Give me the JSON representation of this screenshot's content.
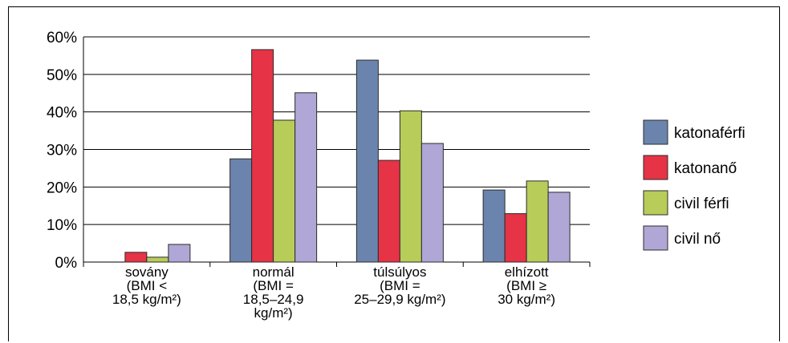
{
  "chart_data": {
    "type": "bar",
    "categories": [
      {
        "lines": [
          "sovány",
          "(BMI <",
          "18,5 kg/m²)"
        ]
      },
      {
        "lines": [
          "normál",
          "(BMI =",
          "18,5–24,9",
          "kg/m²)"
        ]
      },
      {
        "lines": [
          "túlsúlyos",
          "(BMI =",
          "25–29,9 kg/m²)"
        ]
      },
      {
        "lines": [
          "elhízott",
          "(BMI ≥",
          "30 kg/m²)"
        ]
      }
    ],
    "series": [
      {
        "name": "katonaférfi",
        "color": "#6b84ad",
        "values": [
          0,
          27.5,
          53.8,
          19.2
        ]
      },
      {
        "name": "katonanő",
        "color": "#e63346",
        "values": [
          2.6,
          56.6,
          27.1,
          12.9
        ]
      },
      {
        "name": "civil férfi",
        "color": "#b8cc59",
        "values": [
          1.3,
          37.8,
          40.3,
          21.6
        ]
      },
      {
        "name": "civil nő",
        "color": "#b0a7d6",
        "values": [
          4.7,
          45.1,
          31.6,
          18.6
        ]
      }
    ],
    "y_ticks": [
      "0%",
      "10%",
      "20%",
      "30%",
      "40%",
      "50%",
      "60%"
    ],
    "ylim": [
      0,
      60
    ],
    "grid": true,
    "legend_position": "right",
    "title": "",
    "xlabel": "",
    "ylabel": ""
  }
}
